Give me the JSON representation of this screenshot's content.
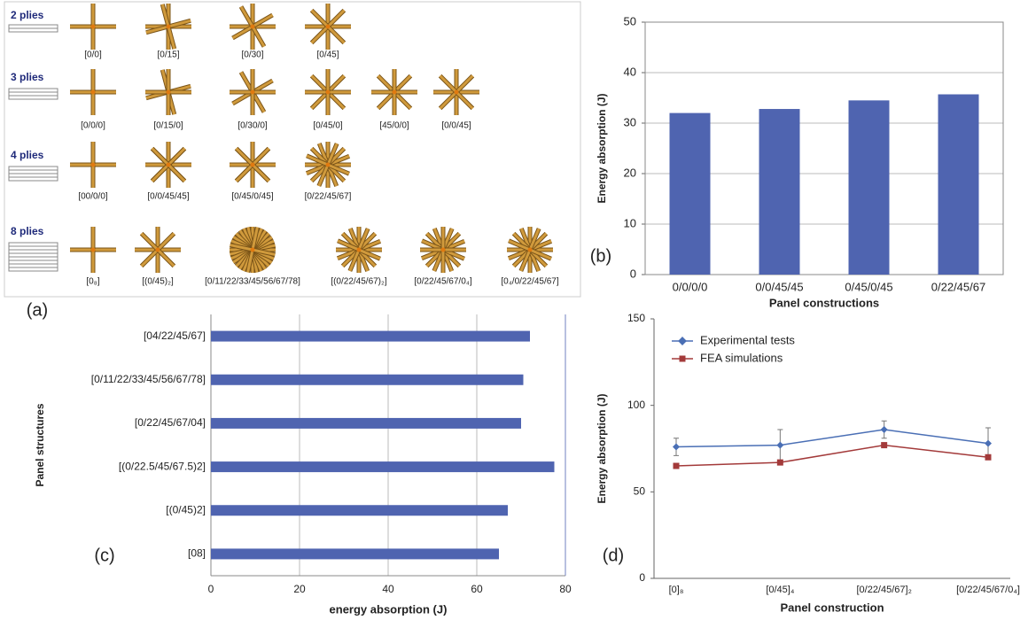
{
  "diagram": {
    "groups": [
      {
        "name": "2 plies",
        "items": [
          {
            "label": "[0/0]"
          },
          {
            "label": "[0/15]"
          },
          {
            "label": "[0/30]"
          },
          {
            "label": "[0/45]"
          }
        ]
      },
      {
        "name": "3 plies",
        "items": [
          {
            "label": "[0/0/0]"
          },
          {
            "label": "[0/15/0]"
          },
          {
            "label": "[0/30/0]"
          },
          {
            "label": "[0/45/0]"
          },
          {
            "label": "[45/0/0]"
          },
          {
            "label": "[0/0/45]"
          }
        ]
      },
      {
        "name": "4 plies",
        "items": [
          {
            "label": "[00/0/0]"
          },
          {
            "label": "[0/0/45/45]"
          },
          {
            "label": "[0/45/0/45]"
          },
          {
            "label": "[0/22/45/67]"
          }
        ]
      },
      {
        "name": "8 plies",
        "items": [
          {
            "label": "[0₈]"
          },
          {
            "label": "[(0/45)₂]"
          },
          {
            "label": "[0/11/22/33/45/56/67/78]"
          },
          {
            "label": "[(0/22/45/67)₂]"
          },
          {
            "label": "[0/22/45/67/0₄]"
          },
          {
            "label": "[0₄/0/22/45/67]"
          }
        ]
      }
    ],
    "panel_label": "(a)"
  },
  "chart_data": [
    {
      "type": "bar",
      "panel_label": "(b)",
      "y_label": "Energy absorption (J)",
      "x_label": "Panel constructions",
      "categories": [
        "0/0/0/0",
        "0/0/45/45",
        "0/45/0/45",
        "0/22/45/67"
      ],
      "values": [
        32,
        32.8,
        34.5,
        35.7
      ],
      "color": "#4f64b0",
      "ylim": [
        0,
        50
      ],
      "yticks": [
        0,
        10,
        20,
        30,
        40,
        50
      ],
      "grid": true
    },
    {
      "type": "barh",
      "panel_label": "(c)",
      "y_label": "Panel structures",
      "x_label": "energy absorption (J)",
      "categories": [
        "[04/22/45/67]",
        "[0/11/22/33/45/56/67/78]",
        "[0/22/45/67/04]",
        "[(0/22.5/45/67.5)2]",
        "[(0/45)2]",
        "[08]"
      ],
      "values": [
        72,
        70.5,
        70,
        77.5,
        67,
        65
      ],
      "color": "#4f64b0",
      "xlim": [
        0,
        80
      ],
      "xticks": [
        0,
        20,
        40,
        60,
        80
      ],
      "grid": true
    },
    {
      "type": "line",
      "panel_label": "(d)",
      "y_label": "Energy absorption (J)",
      "x_label": "Panel construction",
      "categories": [
        "[0]₈",
        "[0/45]₄",
        "[0/22/45/67]₂",
        "[0/22/45/67/0₄]"
      ],
      "series": [
        {
          "name": "Experimental tests",
          "color": "#4a6fb5",
          "values": [
            76,
            77,
            86,
            78
          ],
          "errors": [
            5,
            9,
            5,
            9
          ]
        },
        {
          "name": "FEA simulations",
          "color": "#a33a3a",
          "values": [
            65,
            67,
            77,
            70
          ]
        }
      ],
      "ylim": [
        0,
        150
      ],
      "yticks": [
        0,
        50,
        100,
        150
      ],
      "grid": false,
      "legend": "upper left"
    }
  ]
}
